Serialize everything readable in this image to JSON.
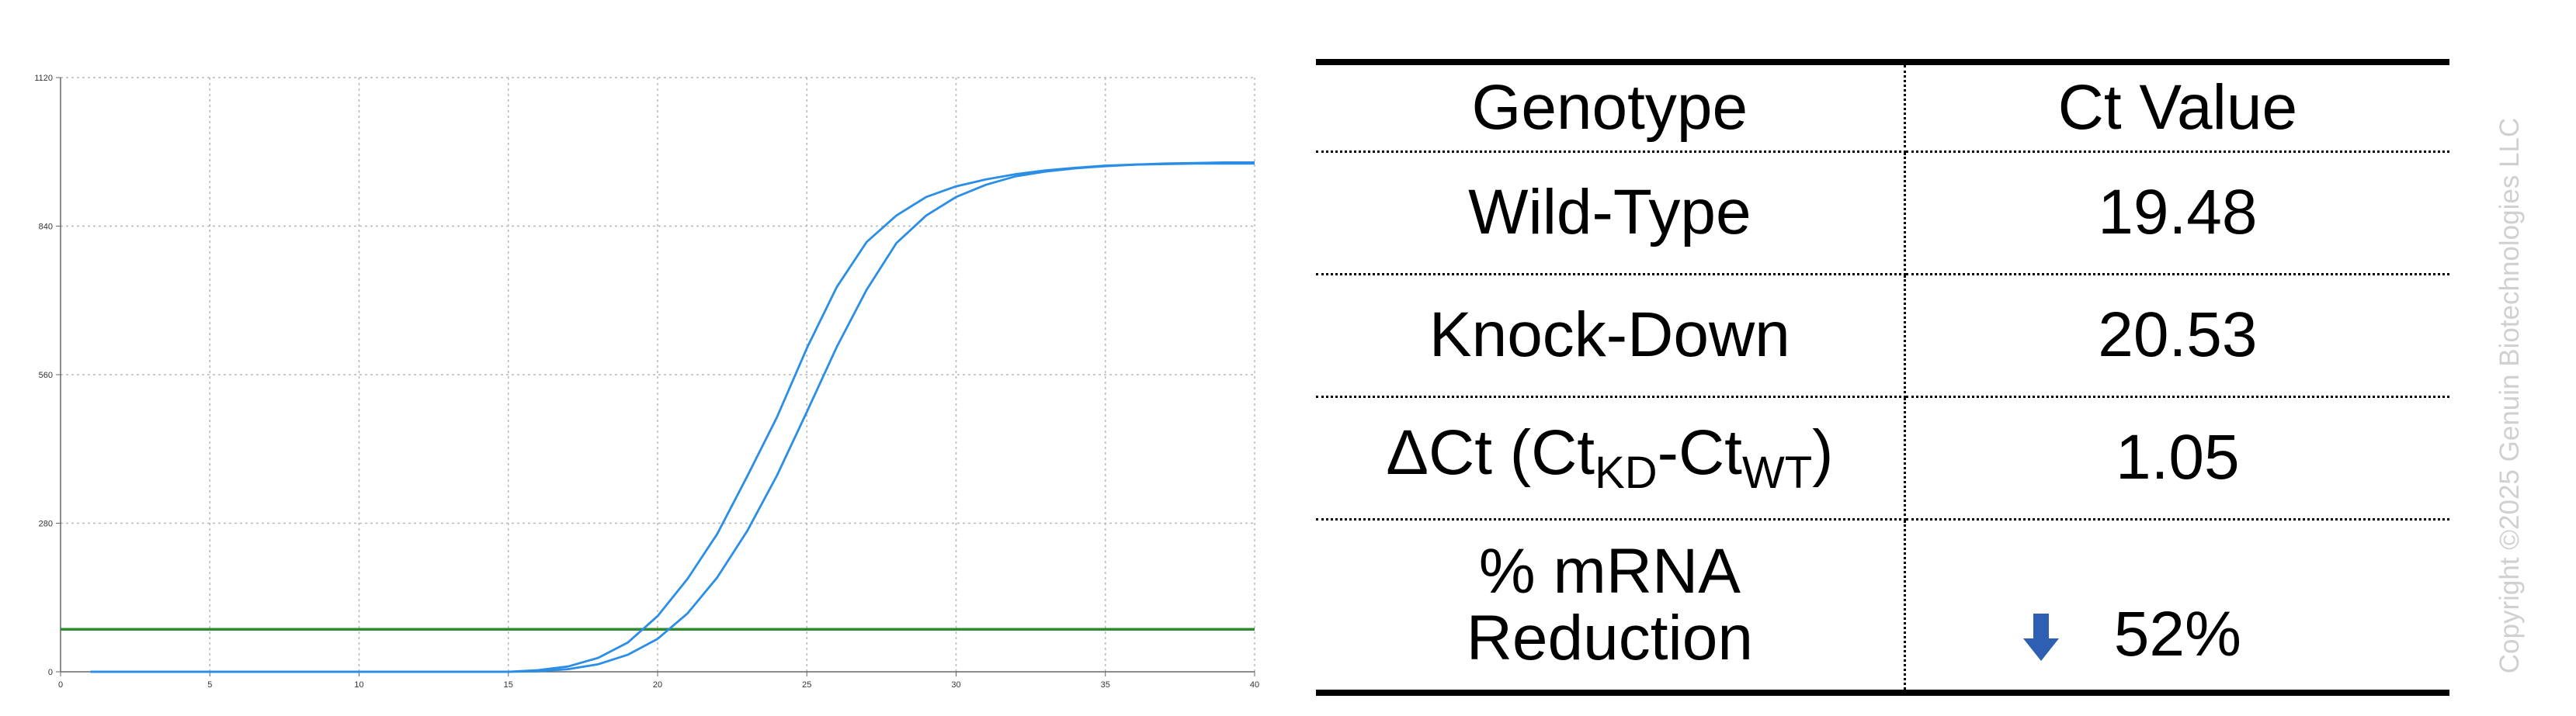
{
  "chart_data": {
    "type": "line",
    "x_ticks": [
      "0",
      "5",
      "10",
      "15",
      "20",
      "25",
      "30",
      "35",
      "40"
    ],
    "y_ticks": [
      "0",
      "280",
      "560",
      "840",
      "1120"
    ],
    "xlim": [
      0,
      40
    ],
    "ylim": [
      0,
      1120
    ],
    "grid": true,
    "threshold": 80,
    "colors": {
      "curves": "#2b8ee6",
      "threshold": "#2e8b2e",
      "grid": "#b8b8b8"
    },
    "series": [
      {
        "x": [
          1,
          5,
          10,
          14,
          15,
          16,
          17,
          18,
          19,
          20,
          21,
          22,
          23,
          24,
          25,
          26,
          27,
          28,
          29,
          30,
          31,
          32,
          33,
          34,
          35,
          36,
          37,
          38,
          39,
          40
        ],
        "values": [
          0,
          0,
          0,
          0,
          0,
          3,
          10,
          26,
          55,
          105,
          175,
          260,
          368,
          480,
          610,
          725,
          810,
          860,
          895,
          915,
          928,
          938,
          945,
          950,
          954,
          956,
          958,
          959,
          960,
          960
        ]
      },
      {
        "x": [
          1,
          5,
          10,
          14,
          15,
          16,
          17,
          18,
          19,
          20,
          21,
          22,
          23,
          24,
          25,
          26,
          27,
          28,
          29,
          30,
          31,
          32,
          33,
          34,
          35,
          36,
          37,
          38,
          39,
          40
        ],
        "values": [
          0,
          0,
          0,
          0,
          0,
          1,
          5,
          14,
          32,
          62,
          110,
          178,
          265,
          370,
          490,
          612,
          720,
          808,
          860,
          895,
          918,
          934,
          943,
          949,
          953,
          956,
          957,
          958,
          958,
          958
        ]
      }
    ]
  },
  "table": {
    "header": {
      "genotype": "Genotype",
      "ct": "Ct Value"
    },
    "wild_type": {
      "label": "Wild-Type",
      "value": "19.48"
    },
    "knock_down": {
      "label": "Knock-Down",
      "value": "20.53"
    },
    "delta": {
      "prefix": "ΔCt (Ct",
      "sub1": "KD",
      "mid": "-Ct",
      "sub2": "WT",
      "suffix": ")",
      "value": "1.05"
    },
    "reduction": {
      "label_line1": "% mRNA",
      "label_line2": "Reduction",
      "value": "52%",
      "icon": "down-arrow-icon",
      "icon_color": "#2f5fb3"
    }
  },
  "copyright": "Copyright ©2025 Genuin Biotechnologies LLC"
}
